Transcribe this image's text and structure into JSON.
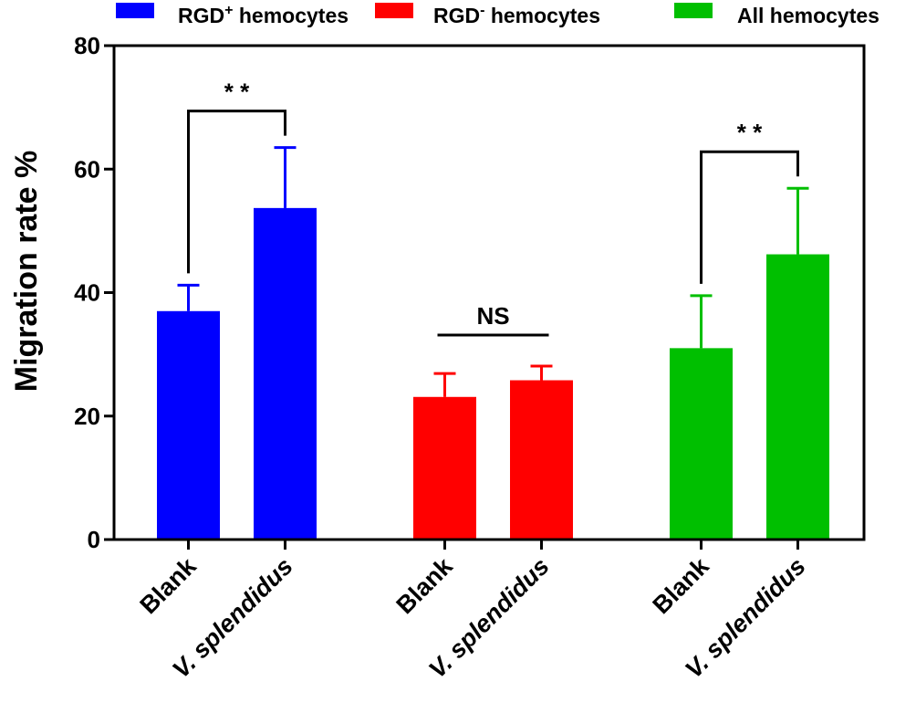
{
  "chart_data": {
    "type": "bar",
    "title": "",
    "xlabel": "",
    "ylabel": "Migration rate %",
    "ylim": [
      0,
      80
    ],
    "yticks": [
      0,
      20,
      40,
      60,
      80
    ],
    "categories": [
      "Blank",
      "V. splendidus"
    ],
    "series": [
      {
        "name_base": "RGD",
        "name_sup": "+",
        "name_rest": " hemocytes",
        "color": "#0000ff",
        "values": [
          37,
          53.7
        ],
        "errors": [
          4.2,
          9.8
        ]
      },
      {
        "name_base": "RGD",
        "name_sup": "-",
        "name_rest": " hemocytes",
        "color": "#ff0000",
        "values": [
          23.1,
          25.8
        ],
        "errors": [
          3.8,
          2.3
        ]
      },
      {
        "name_base": "All hemocytes",
        "name_sup": "",
        "name_rest": "",
        "color": "#00bf00",
        "values": [
          31,
          46.2
        ],
        "errors": [
          8.5,
          10.7
        ]
      }
    ],
    "significance": [
      "* *",
      "NS",
      "* *"
    ],
    "legend_position": "top"
  }
}
